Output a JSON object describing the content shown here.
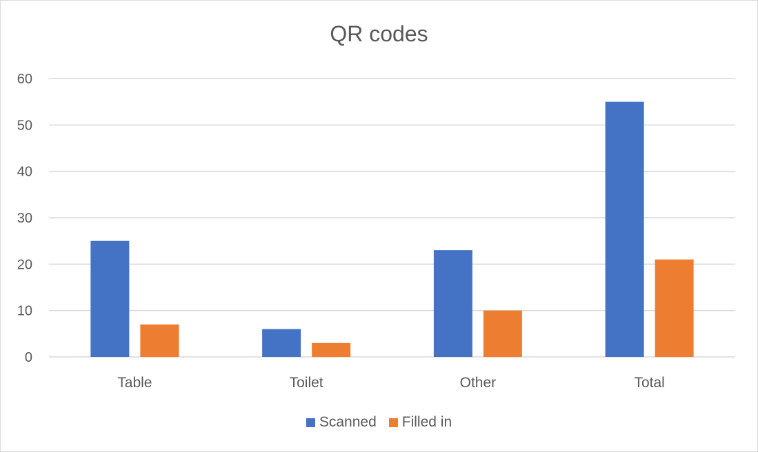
{
  "chart_data": {
    "type": "bar",
    "title": "QR codes",
    "categories": [
      "Table",
      "Toilet",
      "Other",
      "Total"
    ],
    "series": [
      {
        "name": "Scanned",
        "values": [
          25,
          6,
          23,
          55
        ],
        "color": "#4472c4"
      },
      {
        "name": "Filled in",
        "values": [
          7,
          3,
          10,
          21
        ],
        "color": "#ed7d31"
      }
    ],
    "ylim": [
      0,
      60
    ],
    "yticks": [
      0,
      10,
      20,
      30,
      40,
      50,
      60
    ],
    "grid": true,
    "legend": "bottom"
  }
}
